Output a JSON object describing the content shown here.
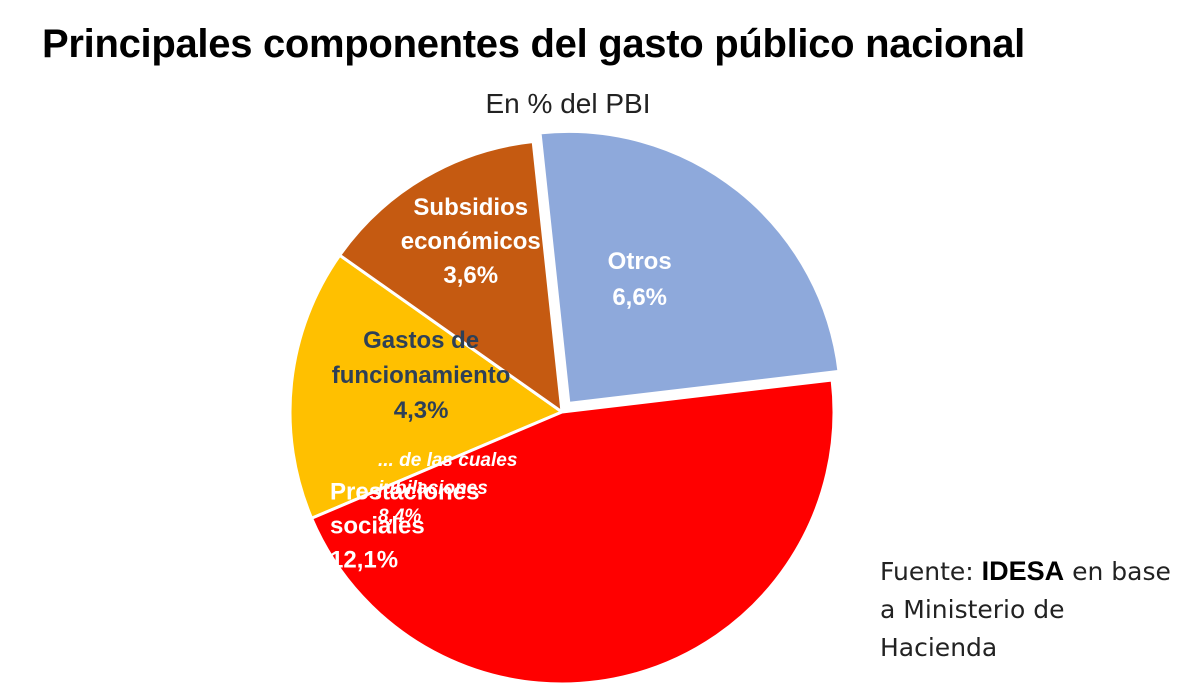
{
  "chart_data": {
    "type": "pie",
    "title": "Principales componentes del gasto público nacional",
    "subtitle": "En % del PBI",
    "unit": "% del PBI",
    "slices": [
      {
        "label_lines": [
          "Gastos de",
          "funcionamiento"
        ],
        "value": 4.3,
        "value_label": "4,3%",
        "color": "#FFC000",
        "text_color": "#2E4057"
      },
      {
        "label_lines": [
          "Subsidios",
          "económicos"
        ],
        "value": 3.6,
        "value_label": "3,6%",
        "color": "#C55A11",
        "text_color": "#FFFFFF"
      },
      {
        "label_lines": [
          "Otros"
        ],
        "value": 6.6,
        "value_label": "6,6%",
        "color": "#8EA9DB",
        "text_color": "#FFFFFF",
        "exploded": true
      },
      {
        "label_lines": [
          "Prestaciones",
          "sociales"
        ],
        "value": 12.1,
        "value_label": "12,1%",
        "color": "#FF0000",
        "text_color": "#FFFFFF",
        "sub_annotation": {
          "lines": [
            "... de las cuales",
            "jubilaciones",
            "8,4%"
          ],
          "value": 8.4
        }
      }
    ]
  },
  "source": {
    "prefix": "Fuente: ",
    "brand": "IDESA",
    "suffix": " en base a Ministerio de Hacienda"
  }
}
